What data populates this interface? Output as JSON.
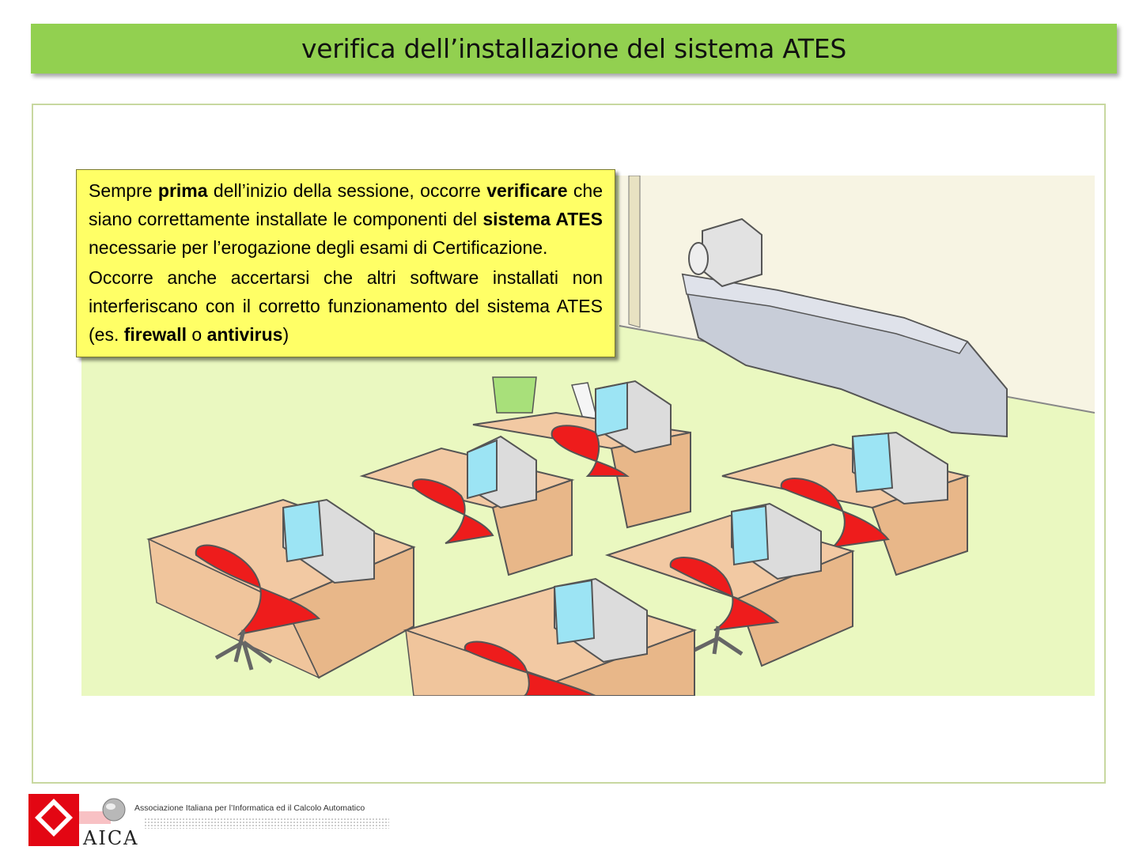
{
  "slide": {
    "title": "verifica dell’installazione del sistema ATES"
  },
  "callout": {
    "p1": {
      "t1": "Sempre ",
      "b1": "prima",
      "t2": " dell’inizio della sessione, occorre ",
      "b2": "verificare",
      "t3": " che siano correttamente installate le componenti del ",
      "b3": "sistema ATES",
      "t4": " necessarie per l’erogazione degli esami di Certificazione."
    },
    "p2": {
      "t1": "Occorre anche accertarsi che altri software installati non interferiscano con il corretto funzionamento del sistema ATES (es. ",
      "b1": "firewall",
      "t2": " o ",
      "b2": "antivirus",
      "t3": ")"
    }
  },
  "footer": {
    "org_name": "Associazione Italiana per l’Informatica ed il Calcolo Automatico",
    "logo_word": "AICA"
  },
  "colors": {
    "title_bar": "#92d050",
    "callout_bg": "#ffff66",
    "floor": "#eaf8c0",
    "desk": "#f2c9a3",
    "chair": "#ee1c1c",
    "monitor_screen": "#9ce4f4",
    "monitor_body": "#dcdcdc",
    "counter": "#c8cdd8",
    "logo_red": "#e30613"
  }
}
